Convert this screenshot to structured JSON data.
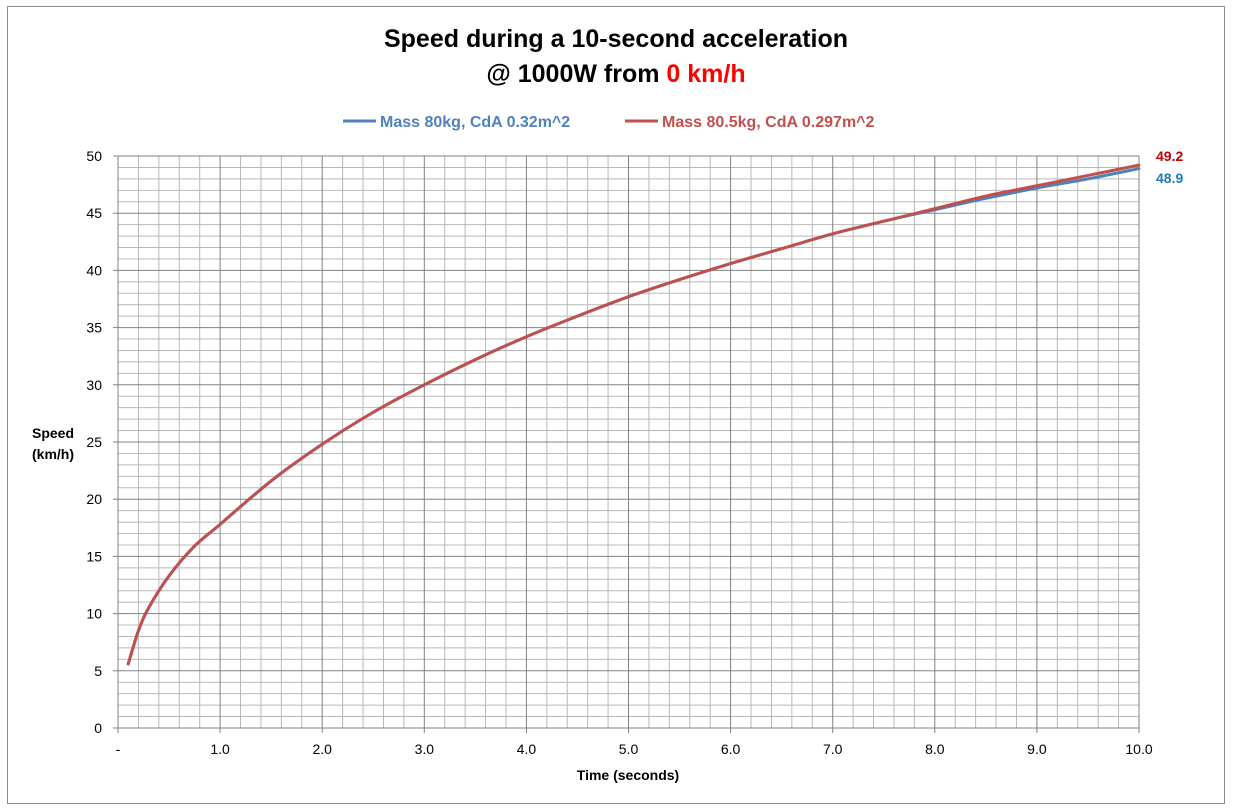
{
  "chart_data": {
    "type": "line",
    "title_line1": "Speed during a 10-second acceleration",
    "title_line2_prefix": "@ 1000W from ",
    "title_line2_highlight": "0 km/h",
    "xlabel": "Time (seconds)",
    "ylabel_line1": "Speed",
    "ylabel_line2": "(km/h)",
    "xlim": [
      0,
      10
    ],
    "ylim": [
      0,
      50
    ],
    "x_ticks": [
      "-",
      "1.0",
      "2.0",
      "3.0",
      "4.0",
      "5.0",
      "6.0",
      "7.0",
      "8.0",
      "9.0",
      "10.0"
    ],
    "y_ticks": [
      "0",
      "5",
      "10",
      "15",
      "20",
      "25",
      "30",
      "35",
      "40",
      "45",
      "50"
    ],
    "grid": true,
    "legend_position": "top",
    "series": [
      {
        "name": "Mass 80kg, CdA 0.32m^2",
        "color": "#4f81bd",
        "label_color": "#1f7ab8",
        "end_label": "48.9",
        "x": [
          0.1,
          0.2,
          0.3,
          0.5,
          0.75,
          1.0,
          1.5,
          2.0,
          2.5,
          3.0,
          3.5,
          4.0,
          4.5,
          5.0,
          5.5,
          6.0,
          6.5,
          7.0,
          7.5,
          8.0,
          8.5,
          9.0,
          9.5,
          10.0
        ],
        "y": [
          5.6,
          8.5,
          10.5,
          13.3,
          15.9,
          17.8,
          21.6,
          24.8,
          27.6,
          30.0,
          32.2,
          34.2,
          36.0,
          37.7,
          39.2,
          40.6,
          41.9,
          43.2,
          44.3,
          45.3,
          46.3,
          47.2,
          48.0,
          48.9
        ]
      },
      {
        "name": "Mass 80.5kg, CdA 0.297m^2",
        "color": "#c0504d",
        "label_color": "#c00000",
        "end_label": "49.2",
        "x": [
          0.1,
          0.2,
          0.3,
          0.5,
          0.75,
          1.0,
          1.5,
          2.0,
          2.5,
          3.0,
          3.5,
          4.0,
          4.5,
          5.0,
          5.5,
          6.0,
          6.5,
          7.0,
          7.5,
          8.0,
          8.5,
          9.0,
          9.5,
          10.0
        ],
        "y": [
          5.6,
          8.5,
          10.5,
          13.3,
          15.9,
          17.8,
          21.6,
          24.8,
          27.6,
          30.0,
          32.2,
          34.2,
          36.0,
          37.7,
          39.2,
          40.6,
          41.9,
          43.2,
          44.3,
          45.4,
          46.5,
          47.4,
          48.3,
          49.2
        ]
      }
    ]
  }
}
